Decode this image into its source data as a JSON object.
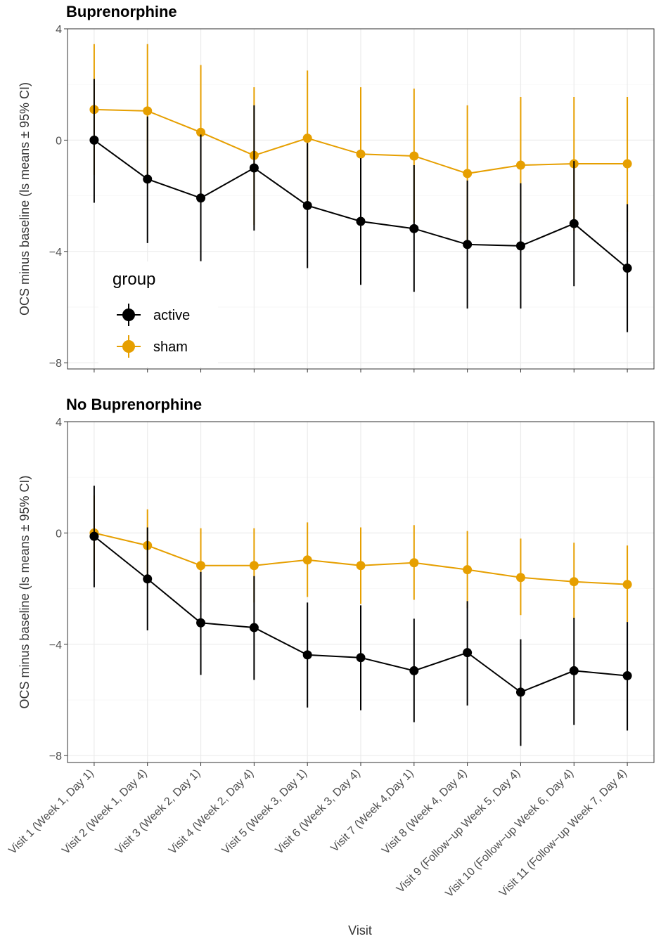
{
  "chart_data": {
    "type": "line",
    "x_label": "Visit",
    "y_label": "OCS minus baseline (ls means ± 95% CI)",
    "ylim": [
      -8.5,
      4
    ],
    "y_ticks": [
      4,
      0,
      -4,
      -8
    ],
    "y_tick_labels": [
      "4",
      "0",
      "−4",
      "−8"
    ],
    "categories": [
      "Visit 1 (Week 1, Day 1)",
      "Visit 2 (Week 1, Day 4)",
      "Visit 3 (Week 2, Day 1)",
      "Visit 4 (Week 2, Day 4)",
      "Visit 5 (Week 3, Day 1)",
      "Visit 6 (Week 3, Day 4)",
      "Visit 7 (Week 4,Day 1)",
      "Visit 8 (Week 4, Day 4)",
      "Visit 9 (Follow−up Week 5, Day 4)",
      "Visit 10 (Follow−up Week 6, Day 4)",
      "Visit 11 (Follow−up Week 7, Day 4)"
    ],
    "legend": {
      "title": "group",
      "entries": [
        {
          "name": "active",
          "color": "#000000"
        },
        {
          "name": "sham",
          "color": "#E69F00"
        }
      ]
    },
    "panels": [
      {
        "title": "Buprenorphine",
        "series": [
          {
            "name": "sham",
            "color": "#E69F00",
            "values": [
              1.1,
              1.05,
              0.28,
              -0.55,
              0.07,
              -0.5,
              -0.57,
              -1.2,
              -0.9,
              -0.85,
              -0.85
            ],
            "lower": [
              -1.25,
              -1.35,
              -2.1,
              -3.05,
              -2.25,
              -2.85,
              -2.95,
              -3.65,
              -3.35,
              -3.25,
              -3.3
            ],
            "upper": [
              3.45,
              3.45,
              2.7,
              1.9,
              2.5,
              1.9,
              1.85,
              1.25,
              1.55,
              1.55,
              1.55
            ]
          },
          {
            "name": "active",
            "color": "#000000",
            "values": [
              0.0,
              -1.4,
              -2.08,
              -1.0,
              -2.35,
              -2.92,
              -3.18,
              -3.75,
              -3.8,
              -3.0,
              -4.6
            ],
            "lower": [
              -2.25,
              -3.7,
              -4.35,
              -3.25,
              -4.6,
              -5.2,
              -5.45,
              -6.05,
              -6.05,
              -5.25,
              -6.9
            ],
            "upper": [
              2.2,
              0.85,
              0.2,
              1.25,
              -0.1,
              -0.65,
              -0.9,
              -1.45,
              -1.55,
              -0.75,
              -2.3
            ]
          }
        ]
      },
      {
        "title": "No Buprenorphine",
        "series": [
          {
            "name": "sham",
            "color": "#E69F00",
            "values": [
              0.0,
              -0.45,
              -1.17,
              -1.17,
              -0.97,
              -1.17,
              -1.07,
              -1.32,
              -1.6,
              -1.75,
              -1.85
            ],
            "lower": [
              -1.35,
              -1.8,
              -2.5,
              -2.5,
              -2.3,
              -2.55,
              -2.4,
              -2.7,
              -2.95,
              -3.1,
              -3.2
            ],
            "upper": [
              1.35,
              0.85,
              0.17,
              0.17,
              0.38,
              0.2,
              0.28,
              0.07,
              -0.2,
              -0.35,
              -0.45
            ]
          },
          {
            "name": "active",
            "color": "#000000",
            "values": [
              -0.12,
              -1.65,
              -3.23,
              -3.4,
              -4.38,
              -4.48,
              -4.95,
              -4.3,
              -5.72,
              -4.95,
              -5.13
            ],
            "lower": [
              -1.95,
              -3.5,
              -5.1,
              -5.28,
              -6.27,
              -6.37,
              -6.8,
              -6.2,
              -7.65,
              -6.9,
              -7.1
            ],
            "upper": [
              1.7,
              0.2,
              -1.4,
              -1.55,
              -2.5,
              -2.6,
              -3.08,
              -2.45,
              -3.82,
              -3.05,
              -3.2
            ]
          }
        ]
      }
    ]
  }
}
